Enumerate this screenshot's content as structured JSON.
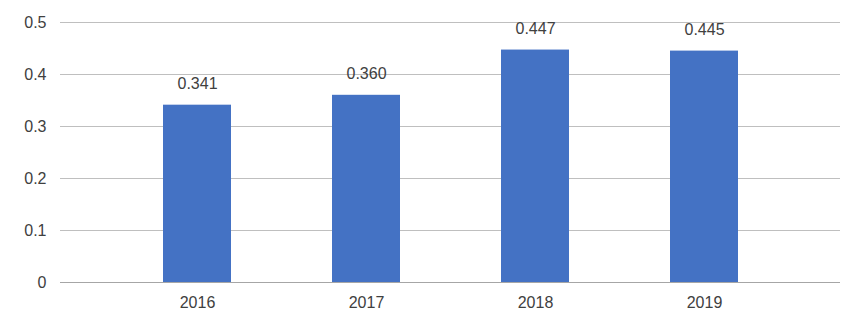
{
  "chart_data": {
    "type": "bar",
    "categories": [
      "2016",
      "2017",
      "2018",
      "2019"
    ],
    "values": [
      0.341,
      0.36,
      0.447,
      0.445
    ],
    "value_labels": [
      "0.341",
      "0.360",
      "0.447",
      "0.445"
    ],
    "color": "#4472c4",
    "ylim": [
      0,
      0.5
    ],
    "yticks": [
      0,
      0.1,
      0.2,
      0.3,
      0.4,
      0.5
    ],
    "grid": true,
    "data_labels": true
  }
}
